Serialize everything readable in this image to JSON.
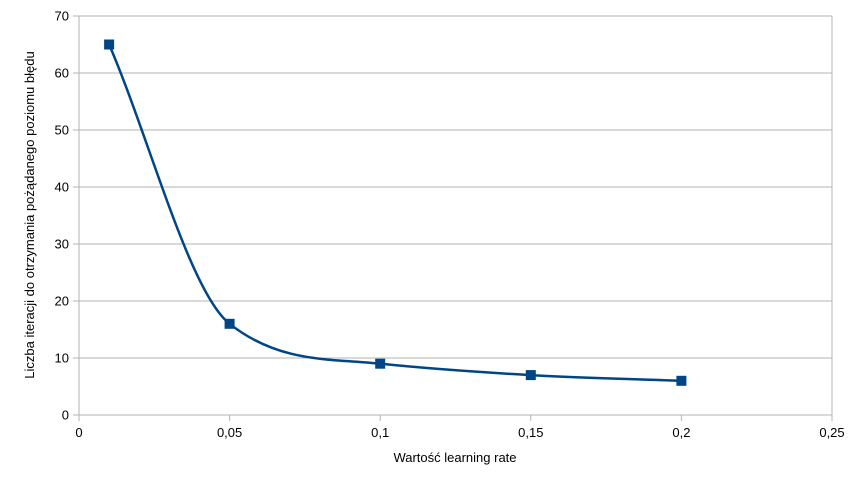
{
  "chart_data": {
    "type": "scatter",
    "xlabel": "Wartość learning rate",
    "ylabel": "Liczba iteracji do otrzymania pożądanego poziomu błędu",
    "xlim": [
      0,
      0.25
    ],
    "ylim": [
      0,
      70
    ],
    "x_ticks": [
      "0",
      "0,05",
      "0,1",
      "0,15",
      "0,2",
      "0,25"
    ],
    "y_ticks": [
      "0",
      "10",
      "20",
      "30",
      "40",
      "50",
      "60",
      "70"
    ],
    "grid": true,
    "smooth_line": true,
    "series": [
      {
        "x": [
          0.01,
          0.05,
          0.1,
          0.15,
          0.2
        ],
        "y": [
          65,
          16,
          9,
          7,
          6
        ],
        "color": "#004586",
        "marker": "square"
      }
    ]
  }
}
